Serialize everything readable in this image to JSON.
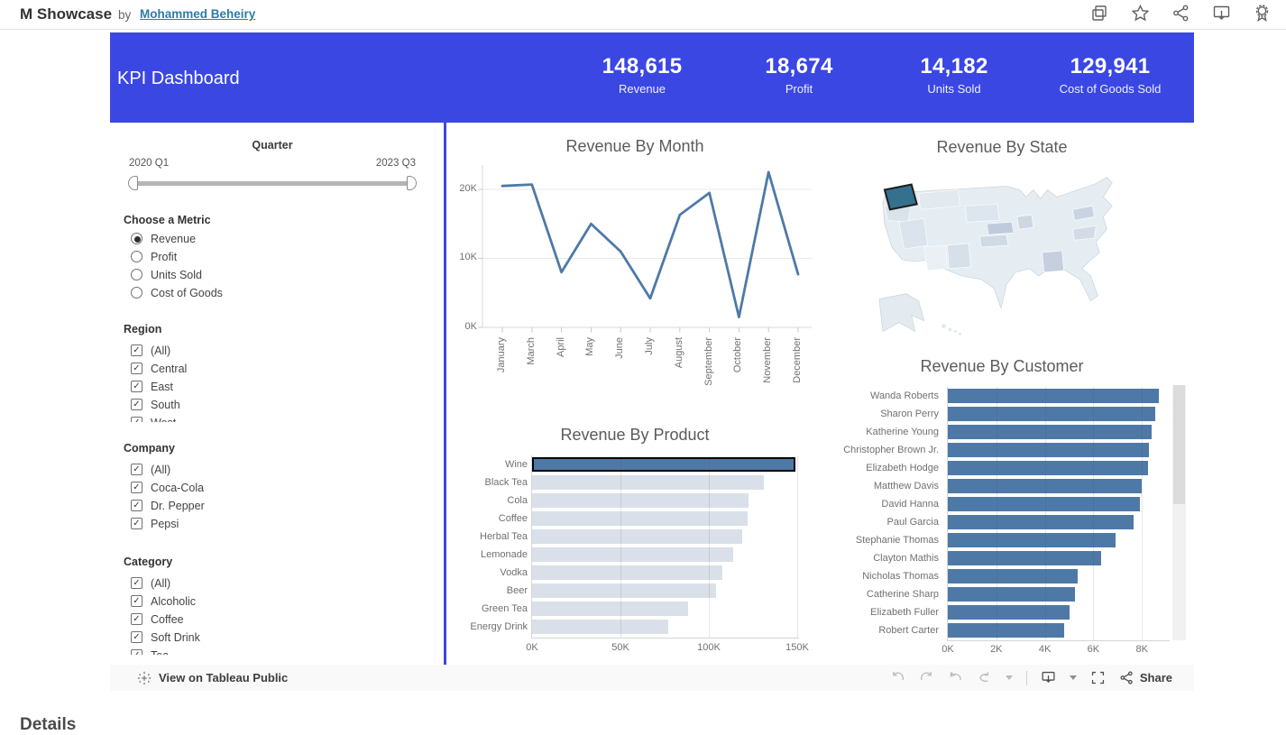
{
  "header": {
    "title": "M Showcase",
    "by_label": "by",
    "author": "Mohammed Beheiry",
    "icons": [
      "duplicate-icon",
      "favorite-star-icon",
      "share-network-icon",
      "download-view-icon",
      "award-icon"
    ]
  },
  "kpi": {
    "title": "KPI Dashboard",
    "items": [
      {
        "value": "148,615",
        "label": "Revenue"
      },
      {
        "value": "18,674",
        "label": "Profit"
      },
      {
        "value": "14,182",
        "label": "Units Sold"
      },
      {
        "value": "129,941",
        "label": "Cost of Goods Sold"
      }
    ]
  },
  "filters": {
    "quarter": {
      "title": "Quarter",
      "start_label": "2020 Q1",
      "end_label": "2023 Q3"
    },
    "metric": {
      "title": "Choose a Metric",
      "selected": "Revenue",
      "options": [
        "Revenue",
        "Profit",
        "Units Sold",
        "Cost of Goods"
      ]
    },
    "region": {
      "title": "Region",
      "options": [
        "(All)",
        "Central",
        "East",
        "South",
        "West"
      ],
      "all_checked": true
    },
    "company": {
      "title": "Company",
      "options": [
        "(All)",
        "Coca-Cola",
        "Dr. Pepper",
        "Pepsi"
      ],
      "all_checked": true
    },
    "category": {
      "title": "Category",
      "options": [
        "(All)",
        "Alcoholic",
        "Coffee",
        "Soft Drink",
        "Tea"
      ],
      "all_checked": true
    }
  },
  "chart_data": [
    {
      "id": "month",
      "type": "line",
      "title": "Revenue By Month",
      "x": [
        "January",
        "March",
        "April",
        "May",
        "June",
        "July",
        "August",
        "September",
        "October",
        "November",
        "December"
      ],
      "values_k": [
        20.5,
        20.7,
        8,
        15,
        11,
        4.2,
        16.3,
        19.5,
        1.5,
        22.5,
        7.7
      ],
      "y_ticks": [
        "0K",
        "10K",
        "20K"
      ],
      "ylim_k": [
        0,
        23.5
      ],
      "grid": true
    },
    {
      "id": "state",
      "type": "choropleth",
      "title": "Revenue By State",
      "region": "USA",
      "highlighted_state": "Washington"
    },
    {
      "id": "product",
      "type": "bar",
      "title": "Revenue By Product",
      "categories": [
        "Wine",
        "Black Tea",
        "Cola",
        "Coffee",
        "Herbal Tea",
        "Lemonade",
        "Vodka",
        "Beer",
        "Green Tea",
        "Energy Drink"
      ],
      "values_k": [
        149,
        131,
        122.5,
        122,
        119,
        114,
        107.5,
        104,
        88,
        77
      ],
      "x_ticks": [
        "0K",
        "50K",
        "100K",
        "150K"
      ],
      "xlim_k": [
        0,
        153
      ],
      "highlighted": "Wine"
    },
    {
      "id": "customer",
      "type": "bar",
      "title": "Revenue By Customer",
      "categories": [
        "Wanda Roberts",
        "Sharon Perry",
        "Katherine Young",
        "Christopher Brown Jr.",
        "Elizabeth Hodge",
        "Matthew Davis",
        "David Hanna",
        "Paul Garcia",
        "Stephanie Thomas",
        "Clayton Mathis",
        "Nicholas Thomas",
        "Catherine Sharp",
        "Elizabeth Fuller",
        "Robert Carter"
      ],
      "values_k": [
        8.7,
        8.55,
        8.4,
        8.3,
        8.25,
        8.0,
        7.9,
        7.65,
        6.9,
        6.3,
        5.35,
        5.25,
        5.0,
        4.8
      ],
      "x_ticks": [
        "0K",
        "2K",
        "4K",
        "6K",
        "8K"
      ],
      "xlim_k": [
        0,
        9.3
      ]
    }
  ],
  "toolbar": {
    "brand_label": "View on Tableau Public",
    "share_label": "Share"
  },
  "details_heading": "Details",
  "colors": {
    "banner_blue": "#3B47E3",
    "accent_blue": "#4e79a7",
    "bar_light": "#d9e0e9",
    "link_blue": "#2e7ca8",
    "map_highlight": "#35708E"
  }
}
